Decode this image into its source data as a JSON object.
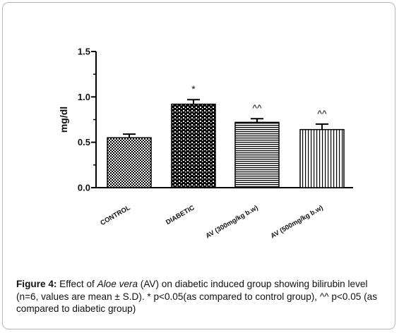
{
  "chart_data": {
    "type": "bar",
    "categories": [
      "CONTROL",
      "DIABETIC",
      "AV (300mg/kg b.w)",
      "AV (500mg/kg b.w)"
    ],
    "values": [
      0.55,
      0.92,
      0.72,
      0.64
    ],
    "errors": [
      0.04,
      0.05,
      0.04,
      0.06
    ],
    "annotations": [
      "",
      "*",
      "^^",
      "^^"
    ],
    "ylabel": "mg/dl",
    "ylim": [
      0,
      1.5
    ],
    "yticks": [
      "0.0",
      "0.5",
      "1.0",
      "1.5"
    ],
    "patterns": [
      "checker",
      "dots",
      "horizontal-lines",
      "vertical-lines"
    ],
    "bar_color": "#000000"
  },
  "caption": {
    "label": "Figure 4:",
    "text_before": " Effect of ",
    "species": "Aloe vera",
    "text_after": " (AV) on diabetic induced group showing bilirubin level   (n=6, values are mean ± S.D). * p<0.05(as compared to control group), ^^ p<0.05 (as compared to diabetic group)"
  }
}
